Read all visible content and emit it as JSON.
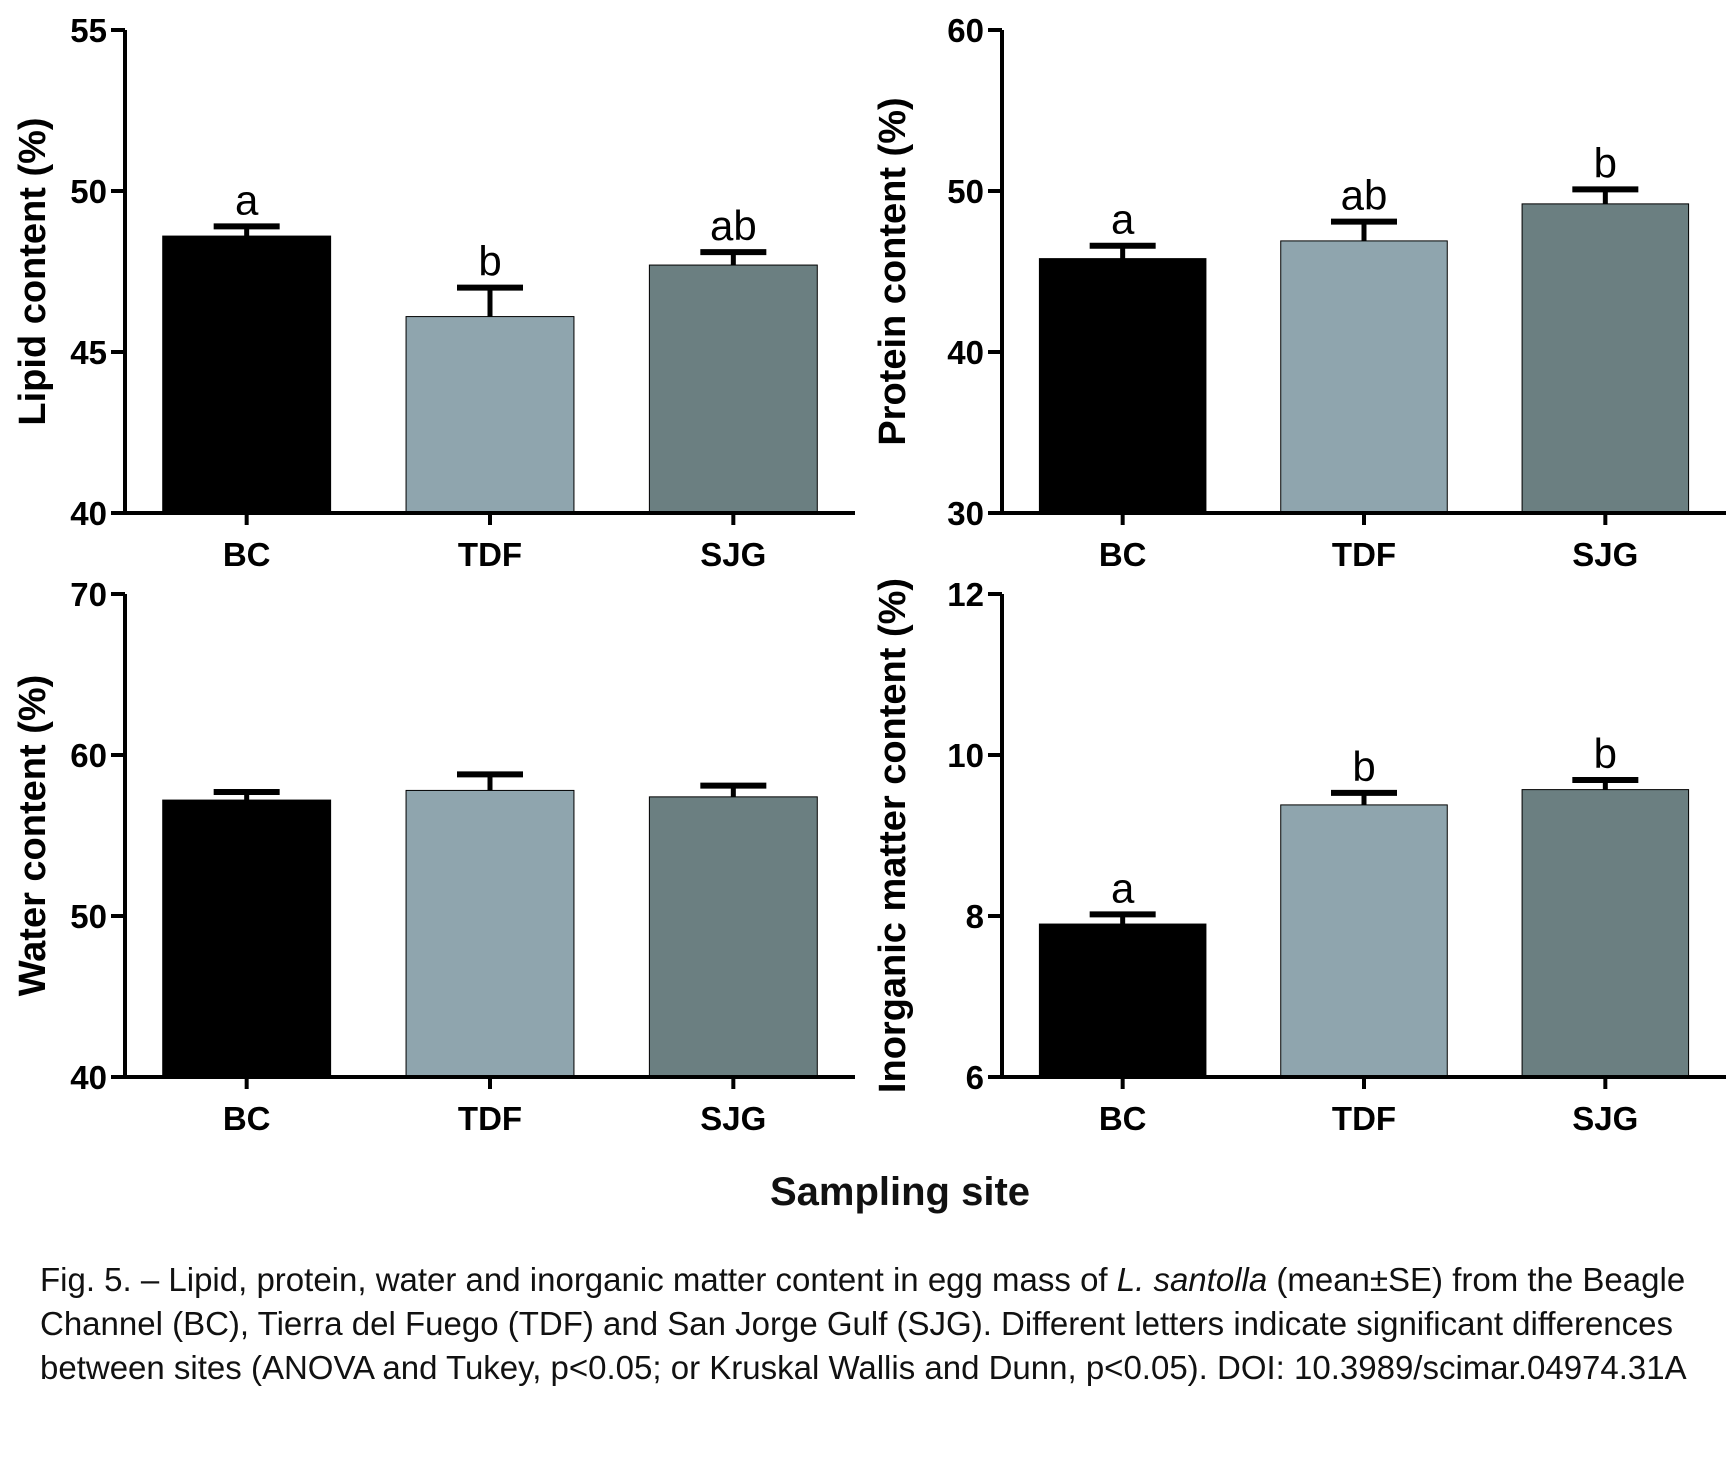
{
  "chart_data": [
    {
      "type": "bar",
      "ylabel": "Lipid content (%)",
      "categories": [
        "BC",
        "TDF",
        "SJG"
      ],
      "values": [
        48.6,
        46.1,
        47.7
      ],
      "errors": [
        0.3,
        0.9,
        0.4
      ],
      "letters": [
        "a",
        "b",
        "ab"
      ],
      "ylim": [
        40,
        55
      ],
      "yticks": [
        "40",
        "45",
        "50",
        "55"
      ],
      "colors": [
        "#000000",
        "#8fa5ae",
        "#6b7f81"
      ]
    },
    {
      "type": "bar",
      "ylabel": "Protein content (%)",
      "categories": [
        "BC",
        "TDF",
        "SJG"
      ],
      "values": [
        45.8,
        46.9,
        49.2
      ],
      "errors": [
        0.8,
        1.2,
        0.9
      ],
      "letters": [
        "a",
        "ab",
        "b"
      ],
      "ylim": [
        30,
        60
      ],
      "yticks": [
        "30",
        "40",
        "50",
        "60"
      ],
      "colors": [
        "#000000",
        "#8fa5ae",
        "#6b7f81"
      ]
    },
    {
      "type": "bar",
      "ylabel": "Water content (%)",
      "categories": [
        "BC",
        "TDF",
        "SJG"
      ],
      "values": [
        57.2,
        57.8,
        57.4
      ],
      "errors": [
        0.5,
        1.0,
        0.7
      ],
      "letters": [
        "",
        "",
        ""
      ],
      "ylim": [
        40,
        70
      ],
      "yticks": [
        "40",
        "50",
        "60",
        "70"
      ],
      "colors": [
        "#000000",
        "#8fa5ae",
        "#6b7f81"
      ]
    },
    {
      "type": "bar",
      "ylabel": "Inorganic matter content (%)",
      "categories": [
        "BC",
        "TDF",
        "SJG"
      ],
      "values": [
        7.9,
        9.38,
        9.57
      ],
      "errors": [
        0.12,
        0.15,
        0.12
      ],
      "letters": [
        "a",
        "b",
        "b"
      ],
      "ylim": [
        6,
        12
      ],
      "yticks": [
        "6",
        "8",
        "10",
        "12"
      ],
      "colors": [
        "#000000",
        "#8fa5ae",
        "#6b7f81"
      ]
    }
  ],
  "figure": {
    "xlabel": "Sampling site",
    "caption": {
      "part1": "Fig. 5. – Lipid, protein, water and inorganic matter content in egg mass of ",
      "species": "L. santolla",
      "part2": " (mean±SE) from the Beagle Channel (BC), Tierra del Fuego (TDF) and San Jorge Gulf (SJG). Different letters indicate significant differences between sites (ANOVA and Tukey, p<0.05; or Kruskal Wallis and Dunn, p<0.05). DOI: 10.3989/scimar.04974.31A"
    }
  }
}
